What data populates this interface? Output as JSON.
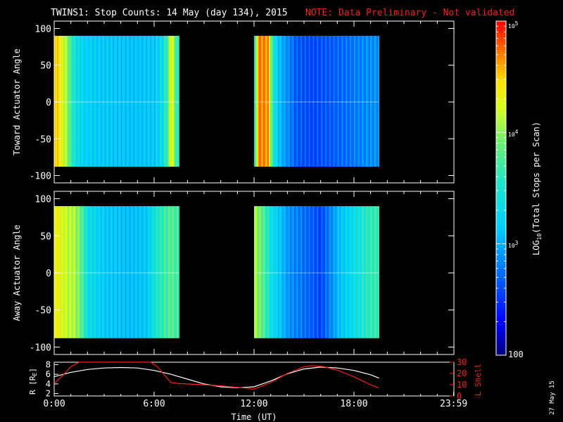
{
  "title": "TWINS1: Stop Counts: 14 May (day 134), 2015",
  "note": "NOTE: Data Preliminary - Not validated",
  "date_stamp": "27 May 15",
  "colors": {
    "background": "#000000",
    "text": "#ffffff",
    "note": "#ff1a1a",
    "r_line": "#ffffff",
    "lshell_line": "#ff1a1a"
  },
  "chart_data": [
    {
      "type": "heatmap",
      "name": "toward",
      "ylabel": "Toward Actuator Angle",
      "ylim": [
        -110,
        110
      ],
      "yticks": [
        "100",
        "50",
        "0",
        "-50",
        "-100"
      ],
      "ytick_values": [
        100,
        50,
        0,
        -50,
        -100
      ],
      "xlim_hours": [
        0,
        24
      ],
      "data_extent_y": [
        -88,
        90
      ],
      "segments": [
        {
          "start_hour": 0.0,
          "end_hour": 7.5,
          "profile": [
            {
              "h": 0.0,
              "c": 0.85
            },
            {
              "h": 0.5,
              "c": 0.75
            },
            {
              "h": 0.8,
              "c": 0.65
            },
            {
              "h": 1.0,
              "c": 0.55
            },
            {
              "h": 1.3,
              "c": 0.45
            },
            {
              "h": 1.8,
              "c": 0.4
            },
            {
              "h": 3.0,
              "c": 0.38
            },
            {
              "h": 4.5,
              "c": 0.37
            },
            {
              "h": 6.0,
              "c": 0.38
            },
            {
              "h": 6.5,
              "c": 0.45
            },
            {
              "h": 6.8,
              "c": 0.6
            },
            {
              "h": 7.0,
              "c": 0.8
            },
            {
              "h": 7.3,
              "c": 0.55
            },
            {
              "h": 7.5,
              "c": 0.5
            }
          ]
        },
        {
          "start_hour": 12.0,
          "end_hour": 19.5,
          "profile": [
            {
              "h": 12.0,
              "c": 0.45
            },
            {
              "h": 12.2,
              "c": 0.9
            },
            {
              "h": 12.8,
              "c": 0.88
            },
            {
              "h": 13.1,
              "c": 0.5
            },
            {
              "h": 13.5,
              "c": 0.35
            },
            {
              "h": 14.5,
              "c": 0.22
            },
            {
              "h": 15.5,
              "c": 0.2
            },
            {
              "h": 16.5,
              "c": 0.22
            },
            {
              "h": 17.5,
              "c": 0.25
            },
            {
              "h": 18.5,
              "c": 0.28
            },
            {
              "h": 19.5,
              "c": 0.3
            }
          ]
        }
      ]
    },
    {
      "type": "heatmap",
      "name": "away",
      "ylabel": "Away Actuator Angle",
      "ylim": [
        -110,
        110
      ],
      "yticks": [
        "100",
        "50",
        "0",
        "-50",
        "-100"
      ],
      "ytick_values": [
        100,
        50,
        0,
        -50,
        -100
      ],
      "xlim_hours": [
        0,
        24
      ],
      "data_extent_y": [
        -88,
        90
      ],
      "segments": [
        {
          "start_hour": 0.0,
          "end_hour": 7.5,
          "profile": [
            {
              "h": 0.0,
              "c": 0.8
            },
            {
              "h": 0.7,
              "c": 0.72
            },
            {
              "h": 1.2,
              "c": 0.7
            },
            {
              "h": 1.6,
              "c": 0.6
            },
            {
              "h": 2.0,
              "c": 0.45
            },
            {
              "h": 3.0,
              "c": 0.38
            },
            {
              "h": 4.5,
              "c": 0.36
            },
            {
              "h": 5.5,
              "c": 0.38
            },
            {
              "h": 6.0,
              "c": 0.48
            },
            {
              "h": 6.5,
              "c": 0.55
            },
            {
              "h": 7.0,
              "c": 0.6
            },
            {
              "h": 7.5,
              "c": 0.55
            }
          ]
        },
        {
          "start_hour": 12.0,
          "end_hour": 19.5,
          "profile": [
            {
              "h": 12.0,
              "c": 0.7
            },
            {
              "h": 12.5,
              "c": 0.6
            },
            {
              "h": 13.0,
              "c": 0.45
            },
            {
              "h": 14.0,
              "c": 0.3
            },
            {
              "h": 15.5,
              "c": 0.22
            },
            {
              "h": 16.0,
              "c": 0.2
            },
            {
              "h": 17.0,
              "c": 0.35
            },
            {
              "h": 18.0,
              "c": 0.45
            },
            {
              "h": 19.0,
              "c": 0.55
            },
            {
              "h": 19.5,
              "c": 0.55
            }
          ]
        }
      ]
    },
    {
      "type": "line",
      "name": "ephemeris",
      "ylabel_left": "R [R",
      "ylabel_left_sub": "E",
      "ylabel_left_end": "]",
      "ylabel_right": "L Shell",
      "y_left_lim": [
        1.5,
        8.5
      ],
      "y_left_ticks": [
        "8",
        "6",
        "4",
        "2"
      ],
      "y_left_tick_values": [
        8,
        6,
        4,
        2
      ],
      "y_right_lim": [
        0,
        30
      ],
      "y_right_ticks": [
        "30",
        "20",
        "10",
        "0"
      ],
      "y_right_tick_values": [
        30,
        20,
        10,
        0
      ],
      "xlim_hours": [
        0,
        24
      ],
      "xticks": [
        "0:00",
        "6:00",
        "12:00",
        "18:00",
        "23:59"
      ],
      "xtick_values": [
        0,
        6,
        12,
        18,
        23.983
      ],
      "xlabel": "Time (UT)",
      "series": [
        {
          "axis": "left",
          "color": "#ffffff",
          "x": [
            0,
            1,
            2,
            3,
            4,
            5,
            6,
            7,
            8,
            9,
            10,
            11,
            12,
            13,
            14,
            15,
            16,
            17,
            18,
            19,
            19.5
          ],
          "y": [
            5.5,
            6.4,
            7.0,
            7.3,
            7.4,
            7.3,
            6.8,
            6.0,
            5.0,
            4.0,
            3.4,
            3.2,
            3.4,
            4.6,
            6.1,
            7.1,
            7.5,
            7.3,
            6.8,
            5.9,
            5.2
          ]
        },
        {
          "axis": "right",
          "color": "#ff1a1a",
          "x": [
            0,
            0.5,
            1,
            1.5,
            1.6,
            5.8,
            6.2,
            7.0,
            7.5,
            9,
            10,
            11.5,
            12,
            13,
            14,
            15,
            15.5,
            16.2,
            17,
            18,
            19,
            19.5
          ],
          "y": [
            11,
            18,
            26,
            31,
            31,
            31,
            26,
            12,
            11,
            10,
            9,
            7,
            6,
            12,
            20,
            26,
            27,
            26,
            23,
            17,
            10,
            7
          ]
        }
      ]
    }
  ],
  "colorbar": {
    "label": "LOG",
    "label_sub": "10",
    "label_rest": "(Total Stops per Scan)",
    "top_label_base": "10",
    "top_label_exp": "5",
    "mid_label_base": "10",
    "mid_label_exp": "4",
    "low_label_base": "10",
    "low_label_exp": "3",
    "bottom_label": "100",
    "range_log": [
      2,
      5
    ]
  }
}
